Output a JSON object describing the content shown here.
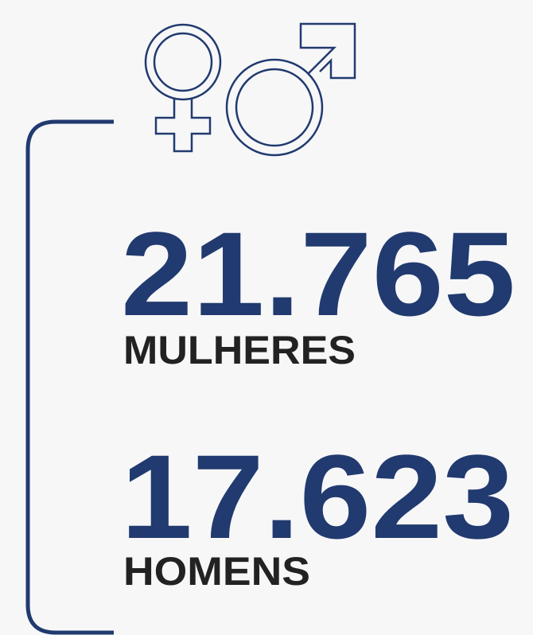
{
  "stats": [
    {
      "value": "21.765",
      "label": "MULHERES"
    },
    {
      "value": "17.623",
      "label": "HOMENS"
    }
  ]
}
